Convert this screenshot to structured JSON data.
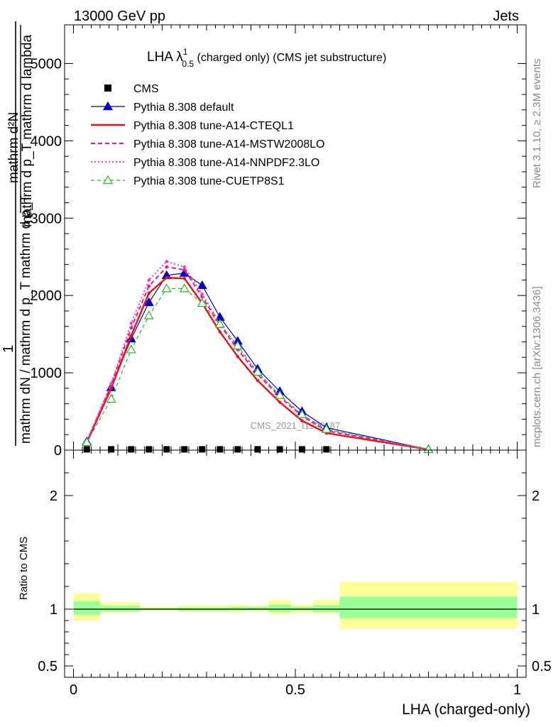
{
  "header": {
    "energy_label": "13000 GeV pp",
    "process_label": "Jets",
    "rivet_label": "Rivet 3.1.10, ≥ 2.3M events",
    "mcplots_label": "mcplots.cern.ch [arXiv:1306.3436]",
    "analysis_watermark": "CMS_2021_I1920187"
  },
  "title": {
    "main": "LHA λ",
    "sup": "1",
    "sub": "0.5",
    "rest": " (charged only) (CMS jet substructure)"
  },
  "ylabel_main": {
    "num_top": "1",
    "num_frac": "mathrm d²N",
    "den_frac": "mathrm d p_T mathrm d lambda",
    "den_main": "mathrm dN / mathrm d p_T mathrm d p_T"
  },
  "ylabel_ratio": "Ratio to CMS",
  "xlabel": "LHA (charged-only)",
  "colors": {
    "cms": "#000000",
    "default": "#0000cc",
    "cteql1": "#ee1111",
    "mstw": "#ee1199",
    "nnpdf": "#ff33cc",
    "cuetp8s1": "#22bb22",
    "band_yellow": "#ffff99",
    "band_green": "#99ff99"
  },
  "chart_data": [
    {
      "type": "line",
      "panel": "main",
      "xlim": [
        -0.02,
        1.02
      ],
      "ylim": [
        0,
        5500
      ],
      "yticks": [
        0,
        1000,
        2000,
        3000,
        4000,
        5000
      ],
      "ytick_labels": [
        "0",
        "1000",
        "2000",
        "3000",
        "4000",
        "5000"
      ],
      "legend_position": "top-left",
      "x": [
        0.03,
        0.085,
        0.13,
        0.17,
        0.21,
        0.25,
        0.29,
        0.33,
        0.37,
        0.415,
        0.465,
        0.515,
        0.57,
        0.8
      ],
      "series": [
        {
          "name": "CMS",
          "style": "marker-square",
          "color_key": "cms",
          "x": [
            0.03,
            0.085,
            0.13,
            0.17,
            0.21,
            0.25,
            0.29,
            0.33,
            0.37,
            0.415,
            0.465,
            0.515,
            0.57
          ],
          "values": [
            10,
            10,
            10,
            10,
            10,
            10,
            10,
            10,
            10,
            10,
            10,
            10,
            10
          ]
        },
        {
          "name": "Pythia 8.308 default",
          "style": "solid-triangle",
          "color_key": "default",
          "values": [
            110,
            810,
            1440,
            1910,
            2260,
            2290,
            2130,
            1720,
            1410,
            1050,
            760,
            500,
            290,
            10
          ]
        },
        {
          "name": "Pythia 8.308 tune-A14-CTEQL1",
          "style": "solid-thick",
          "color_key": "cteql1",
          "values": [
            100,
            800,
            1480,
            2030,
            2230,
            2220,
            1900,
            1530,
            1210,
            900,
            620,
            380,
            220,
            8
          ]
        },
        {
          "name": "Pythia 8.308 tune-A14-MSTW2008LO",
          "style": "dashed",
          "color_key": "mstw",
          "values": [
            110,
            840,
            1580,
            2120,
            2370,
            2330,
            1980,
            1620,
            1300,
            980,
            690,
            440,
            250,
            9
          ]
        },
        {
          "name": "Pythia 8.308 tune-A14-NNPDF2.3LO",
          "style": "dotted",
          "color_key": "nnpdf",
          "values": [
            120,
            860,
            1640,
            2200,
            2440,
            2370,
            2020,
            1640,
            1320,
            1000,
            700,
            450,
            260,
            9
          ]
        },
        {
          "name": "Pythia 8.308 tune-CUETP8S1",
          "style": "dashed-open-triangle",
          "color_key": "cuetp8s1",
          "values": [
            100,
            660,
            1300,
            1740,
            2090,
            2090,
            1900,
            1630,
            1350,
            1010,
            710,
            460,
            270,
            9
          ]
        }
      ]
    },
    {
      "type": "area",
      "panel": "ratio",
      "ylabel": "Ratio to CMS",
      "xlabel": "LHA (charged-only)",
      "xlim": [
        -0.02,
        1.02
      ],
      "ylim": [
        0.4,
        2.4
      ],
      "yticks": [
        0.5,
        1,
        2
      ],
      "ytick_labels": [
        "0.5",
        "1",
        "2"
      ],
      "xticks": [
        0,
        0.5,
        1
      ],
      "xtick_labels": [
        "0",
        "0.5",
        "1"
      ],
      "reference_line": 1,
      "bins": [
        {
          "lo": 0.0,
          "hi": 0.06,
          "green": [
            0.95,
            1.07
          ],
          "yellow": [
            0.9,
            1.14
          ]
        },
        {
          "lo": 0.06,
          "hi": 0.15,
          "green": [
            0.98,
            1.03
          ],
          "yellow": [
            0.97,
            1.06
          ]
        },
        {
          "lo": 0.15,
          "hi": 0.235,
          "green": [
            0.99,
            1.01
          ],
          "yellow": [
            0.985,
            1.02
          ]
        },
        {
          "lo": 0.235,
          "hi": 0.35,
          "green": [
            0.985,
            1.015
          ],
          "yellow": [
            0.975,
            1.03
          ]
        },
        {
          "lo": 0.35,
          "hi": 0.39,
          "green": [
            0.985,
            1.02
          ],
          "yellow": [
            0.97,
            1.04
          ]
        },
        {
          "lo": 0.39,
          "hi": 0.44,
          "green": [
            0.99,
            1.02
          ],
          "yellow": [
            0.98,
            1.03
          ]
        },
        {
          "lo": 0.44,
          "hi": 0.49,
          "green": [
            0.975,
            1.04
          ],
          "yellow": [
            0.955,
            1.08
          ]
        },
        {
          "lo": 0.49,
          "hi": 0.54,
          "green": [
            0.985,
            1.02
          ],
          "yellow": [
            0.97,
            1.04
          ]
        },
        {
          "lo": 0.54,
          "hi": 0.6,
          "green": [
            0.975,
            1.035
          ],
          "yellow": [
            0.96,
            1.08
          ]
        },
        {
          "lo": 0.6,
          "hi": 1.0,
          "green": [
            0.92,
            1.11
          ],
          "yellow": [
            0.83,
            1.24
          ]
        }
      ]
    }
  ]
}
